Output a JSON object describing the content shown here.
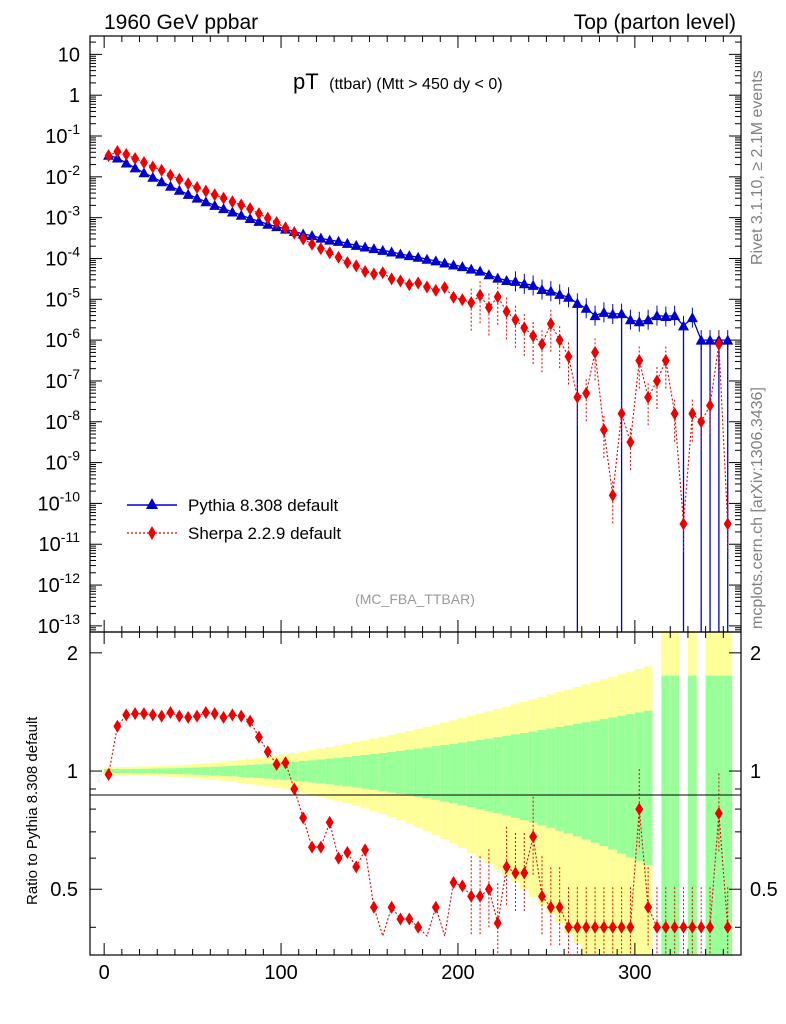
{
  "header": {
    "left": "1960 GeV ppbar",
    "right": "Top (parton level)"
  },
  "side": {
    "rivet": "Rivet 3.1.10, ≥ 2.1M events",
    "mcplots": "mcplots.cern.ch [arXiv:1306.3436]"
  },
  "chart_data": {
    "type": "line",
    "title_main": "pT",
    "title_sub": "(ttbar) (Mtt > 450 dy < 0)",
    "analysis_tag": "(MC_FBA_TTBAR)",
    "xlim": [
      -8,
      360
    ],
    "ylim_log10": [
      -13.15,
      1.45
    ],
    "ratio_ylim": [
      0.34,
      2.26
    ],
    "ratio_ylabel": "Ratio to Pythia 8.308 default",
    "x_ticks": [
      "0",
      "100",
      "200",
      "300"
    ],
    "y_tick_labels_main": [
      "10^-13",
      "10^-12",
      "10^-11",
      "10^-10",
      "10^-9",
      "10^-8",
      "10^-7",
      "10^-6",
      "10^-5",
      "10^-4",
      "10^-3",
      "10^-2",
      "10^-1",
      "1",
      "10"
    ],
    "y_ticks_ratio": [
      "0.5",
      "1",
      "2"
    ],
    "legend": [
      "Pythia 8.308 default",
      "Sherpa 2.2.9 default"
    ],
    "colors": {
      "pythia": "#0000cc",
      "sherpa": "#ee0000",
      "band_inner": "#99ff99",
      "band_outer": "#ffff99"
    },
    "bin_width": 5,
    "x": [
      2.5,
      7.5,
      12.5,
      17.5,
      22.5,
      27.5,
      32.5,
      37.5,
      42.5,
      47.5,
      52.5,
      57.5,
      62.5,
      67.5,
      72.5,
      77.5,
      82.5,
      87.5,
      92.5,
      97.5,
      102.5,
      107.5,
      112.5,
      117.5,
      122.5,
      127.5,
      132.5,
      137.5,
      142.5,
      147.5,
      152.5,
      157.5,
      162.5,
      167.5,
      172.5,
      177.5,
      182.5,
      187.5,
      192.5,
      197.5,
      202.5,
      207.5,
      212.5,
      217.5,
      222.5,
      227.5,
      232.5,
      237.5,
      242.5,
      247.5,
      252.5,
      257.5,
      262.5,
      267.5,
      272.5,
      277.5,
      282.5,
      287.5,
      292.5,
      297.5,
      302.5,
      307.5,
      312.5,
      317.5,
      322.5,
      327.5,
      332.5,
      337.5,
      342.5,
      347.5,
      352.5
    ],
    "series": [
      {
        "name": "Pythia 8.308 default",
        "log10_y": [
          -1.47,
          -1.54,
          -1.66,
          -1.78,
          -1.9,
          -2.01,
          -2.12,
          -2.23,
          -2.33,
          -2.43,
          -2.52,
          -2.61,
          -2.7,
          -2.78,
          -2.86,
          -2.94,
          -3.02,
          -3.09,
          -3.16,
          -3.22,
          -3.28,
          -3.34,
          -3.4,
          -3.44,
          -3.5,
          -3.55,
          -3.58,
          -3.63,
          -3.68,
          -3.72,
          -3.76,
          -3.8,
          -3.84,
          -3.89,
          -3.93,
          -3.97,
          -4.02,
          -4.06,
          -4.11,
          -4.16,
          -4.2,
          -4.26,
          -4.31,
          -4.4,
          -4.48,
          -4.54,
          -4.56,
          -4.62,
          -4.66,
          -4.76,
          -4.8,
          -4.88,
          -4.95,
          -5.1,
          -5.22,
          -5.4,
          -5.32,
          -5.36,
          -5.35,
          -5.5,
          -5.55,
          -5.5,
          -5.4,
          -5.42,
          -5.4,
          -5.65,
          -5.45,
          -6.0,
          -6.0,
          -6.0,
          -6.0
        ],
        "drop": [
          53,
          58,
          65,
          67,
          68,
          69,
          70
        ]
      },
      {
        "name": "Sherpa 2.2.9 default",
        "log10_y": [
          -1.48,
          -1.38,
          -1.45,
          -1.55,
          -1.65,
          -1.76,
          -1.84,
          -1.96,
          -2.06,
          -2.17,
          -2.26,
          -2.35,
          -2.44,
          -2.52,
          -2.61,
          -2.69,
          -2.78,
          -2.9,
          -3.01,
          -3.12,
          -3.25,
          -3.38,
          -3.52,
          -3.65,
          -3.76,
          -3.86,
          -3.97,
          -4.1,
          -4.18,
          -4.32,
          -4.38,
          -4.35,
          -4.5,
          -4.55,
          -4.64,
          -4.6,
          -4.7,
          -4.78,
          -4.71,
          -4.95,
          -5.01,
          -5.08,
          -4.9,
          -5.2,
          -4.94,
          -5.3,
          -5.5,
          -5.7,
          -5.9,
          -6.1,
          -5.6,
          -6.0,
          -6.4,
          -7.4,
          -7.3,
          -6.3,
          -8.2,
          -9.8,
          -7.8,
          -8.5,
          -6.5,
          -7.4,
          -7.0,
          -6.5,
          -7.8,
          -10.5,
          -7.8,
          -8.0,
          -7.6,
          -6.1,
          -10.5
        ],
        "ratio": [
          0.98,
          1.3,
          1.39,
          1.4,
          1.4,
          1.39,
          1.38,
          1.41,
          1.38,
          1.37,
          1.38,
          1.41,
          1.4,
          1.37,
          1.39,
          1.38,
          1.34,
          1.22,
          1.12,
          1.04,
          1.05,
          0.9,
          0.76,
          0.64,
          0.64,
          0.74,
          0.6,
          0.62,
          0.57,
          0.63,
          0.45,
          0.38,
          0.45,
          0.42,
          0.42,
          0.4,
          0.38,
          0.45,
          0.38,
          0.52,
          0.51,
          0.48,
          0.48,
          0.5,
          0.41,
          0.57,
          0.55,
          0.55,
          0.68,
          0.48,
          0.45,
          0.45,
          0.4,
          0.4,
          0.4,
          0.4,
          0.4,
          0.4,
          0.4,
          0.4,
          0.8,
          0.45,
          0.4,
          0.4,
          0.4,
          0.4,
          0.4,
          0.4,
          0.4,
          0.78,
          0.4
        ]
      }
    ]
  }
}
